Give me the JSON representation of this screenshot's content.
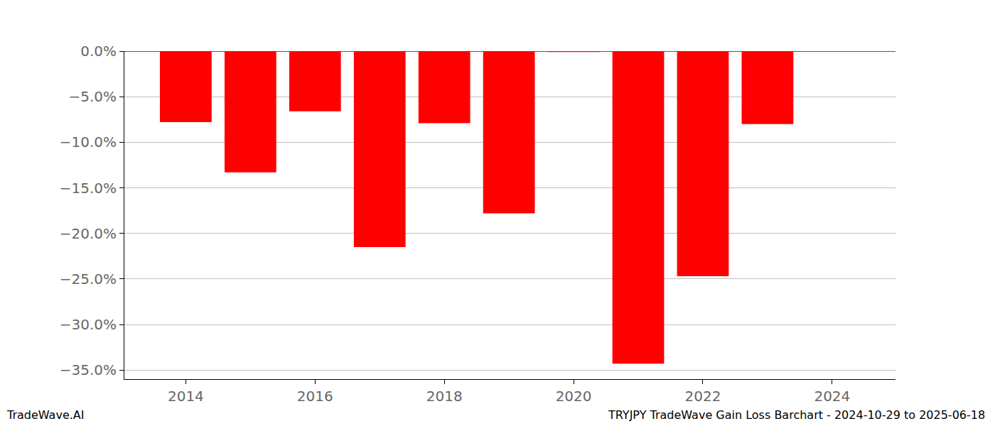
{
  "chart_data": {
    "type": "bar",
    "x": [
      2014,
      2015,
      2016,
      2017,
      2018,
      2019,
      2020,
      2021,
      2022,
      2023
    ],
    "values": [
      -7.8,
      -13.3,
      -6.6,
      -21.5,
      -7.9,
      -17.8,
      -0.1,
      -34.3,
      -24.7,
      -8.0
    ],
    "color": "#ff0000",
    "xlim": [
      2013.05,
      2024.98
    ],
    "xticks": [
      2014,
      2016,
      2018,
      2020,
      2022,
      2024
    ],
    "ylim": [
      -36.0,
      0.0
    ],
    "yticks": [
      {
        "value": 0,
        "label": "0.0%"
      },
      {
        "value": -5,
        "label": "−5.0%"
      },
      {
        "value": -10,
        "label": "−10.0%"
      },
      {
        "value": -15,
        "label": "−15.0%"
      },
      {
        "value": -20,
        "label": "−20.0%"
      },
      {
        "value": -25,
        "label": "−25.0%"
      },
      {
        "value": -30,
        "label": "−30.0%"
      },
      {
        "value": -35,
        "label": "−35.0%"
      }
    ],
    "grid": true,
    "annotations": [
      "TradeWave.AI",
      "TRYJPY TradeWave Gain Loss Barchart - 2024-10-29 to 2025-06-18"
    ]
  }
}
